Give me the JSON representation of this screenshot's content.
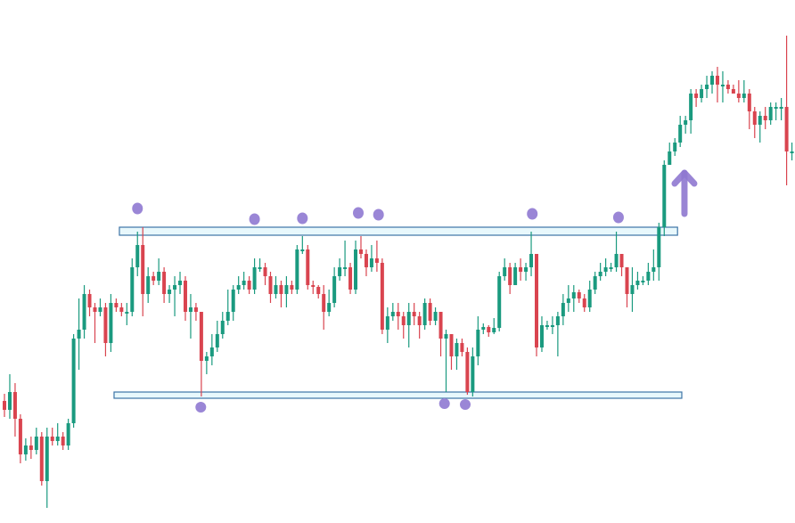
{
  "chart_data": {
    "type": "candlestick",
    "title": "",
    "xlabel": "",
    "ylabel": "",
    "axes_visible": false,
    "grid": false,
    "ylim": [
      0,
      58.7
    ],
    "colors": {
      "up": "#1a9a7f",
      "down": "#d9444f",
      "zone_fill": "#e8f8fc",
      "zone_stroke": "#3d74a6",
      "marker": "#9a86d6",
      "arrow": "#8f78d0"
    },
    "open": [
      15,
      14,
      16,
      13,
      9,
      10,
      9.5,
      11,
      6,
      11,
      10.5,
      11,
      10,
      12.5,
      22,
      23,
      27,
      25.5,
      25,
      25.5,
      21.5,
      26,
      25.5,
      25,
      25,
      30,
      32.5,
      27,
      29,
      28.5,
      29.5,
      27,
      27.5,
      28,
      28.5,
      25,
      25.5,
      25,
      19.5,
      20,
      21,
      22.5,
      24,
      25,
      27.5,
      28,
      28.5,
      27.5,
      30,
      30,
      29,
      27,
      28,
      27,
      28,
      27.5,
      32,
      32,
      28,
      27.8,
      27,
      25,
      26,
      29,
      30,
      30,
      27.5,
      32,
      31.5,
      30,
      31,
      30.5,
      23,
      24.5,
      25,
      24.5,
      23.5,
      25,
      24.5,
      23.5,
      26,
      24,
      25,
      22,
      22.5,
      20,
      21.5,
      20.5,
      16,
      20,
      23,
      23.3,
      22.7,
      23.2,
      29,
      30,
      28,
      30,
      29.5,
      30,
      31.5,
      21,
      23.5,
      23.5,
      23.5,
      24.5,
      26,
      26.5,
      27.2,
      26.5,
      25.5,
      27.5,
      29,
      29.5,
      30,
      30,
      31.5,
      30,
      27,
      28,
      28.5,
      28.5,
      29.5,
      30,
      34.5,
      41.5,
      43,
      44,
      46,
      46.5,
      49.5,
      49,
      50,
      50.5,
      51.5,
      50.5,
      50.5,
      50,
      49.5,
      49,
      49.5,
      47.5,
      46,
      47,
      46.5,
      48,
      48,
      48,
      43
    ],
    "high": [
      15.8,
      18,
      17,
      13.5,
      10.8,
      11,
      12,
      11.5,
      12,
      12,
      12.5,
      11.5,
      13,
      22.5,
      26.5,
      28,
      27.5,
      26,
      26.5,
      26,
      27,
      26.5,
      26,
      26,
      31,
      34,
      34.5,
      30,
      29.5,
      31,
      30,
      28,
      29,
      29.5,
      29,
      27,
      26,
      25,
      20.5,
      22.5,
      24,
      25,
      27.5,
      28,
      29,
      29.5,
      29,
      31,
      31,
      30.5,
      29.5,
      29,
      28.5,
      29,
      28.5,
      32.5,
      33.5,
      32.5,
      28.5,
      28,
      28,
      27.5,
      30,
      31,
      33,
      30.5,
      33,
      33.5,
      32,
      32.5,
      33,
      31,
      25.5,
      26,
      26,
      25,
      26,
      26,
      25,
      26.5,
      26.5,
      25.5,
      25,
      23,
      22.5,
      22,
      22,
      21,
      21,
      24.5,
      23.7,
      23.5,
      24.3,
      29.5,
      31,
      30.5,
      30.5,
      31,
      30.5,
      34,
      31.5,
      24.5,
      24,
      24.5,
      25,
      27,
      28,
      28,
      27.5,
      27,
      28.5,
      29.5,
      30.5,
      31,
      30.5,
      34,
      31.5,
      30,
      30,
      29.5,
      29,
      30.5,
      32,
      35,
      42,
      44,
      44.5,
      47,
      47,
      50,
      50,
      50.5,
      51.5,
      52,
      52.5,
      52,
      51,
      50.5,
      51,
      51,
      50,
      48,
      47.5,
      48,
      48.5,
      48.5,
      49,
      56,
      44
    ],
    "low": [
      13.2,
      13,
      11,
      8,
      8.3,
      8.5,
      9,
      5.5,
      3,
      10,
      10,
      9.5,
      9.5,
      12,
      18.5,
      22,
      24.5,
      21.5,
      24.5,
      20,
      20.5,
      25,
      24.5,
      23.5,
      24.5,
      29,
      24.5,
      26,
      28,
      28,
      26,
      26,
      24.5,
      27,
      24,
      22,
      24,
      15.5,
      18,
      19,
      20.5,
      22,
      23.5,
      24,
      27,
      27.5,
      27,
      27,
      29.5,
      28,
      26,
      26.5,
      25.5,
      25.5,
      27,
      27,
      31.5,
      27.5,
      27,
      26.5,
      23,
      24.5,
      25.5,
      28.5,
      29,
      27,
      27,
      31,
      29,
      29.5,
      29.5,
      22.5,
      21.5,
      24,
      23,
      22,
      21,
      23.5,
      22,
      23,
      23.5,
      23.5,
      20,
      16,
      18.5,
      18.5,
      20,
      15.7,
      15.5,
      19,
      22.5,
      22.2,
      22.5,
      22.8,
      28.5,
      27,
      28.5,
      28.5,
      28.5,
      29,
      20,
      20.5,
      23,
      22.5,
      20,
      23.5,
      25,
      25,
      26,
      25,
      25,
      27,
      28.5,
      29,
      29.5,
      29.5,
      29,
      25.5,
      25,
      27.5,
      28,
      28,
      28.5,
      28.5,
      33.5,
      41.5,
      42.5,
      43.5,
      45,
      45,
      48,
      48.5,
      49,
      49.5,
      48.5,
      48.5,
      49.5,
      49.5,
      48.5,
      48.5,
      45.5,
      44.5,
      44,
      45.5,
      46,
      46.5,
      46.5,
      39.2,
      42
    ],
    "close": [
      14,
      16,
      13,
      9,
      10,
      9.5,
      11,
      6,
      11,
      10.5,
      11,
      10,
      12.5,
      22,
      23,
      27,
      25.5,
      25,
      25.5,
      21.5,
      26,
      25.5,
      25,
      25,
      30,
      32.5,
      27,
      29,
      28.5,
      29.5,
      27,
      27.5,
      28,
      28.5,
      25,
      25.5,
      25,
      19.5,
      20,
      21,
      22.5,
      24,
      25,
      27.5,
      28,
      28.5,
      27.5,
      30,
      30,
      29,
      27,
      28,
      27,
      28,
      27.5,
      32,
      32,
      28,
      27.8,
      27,
      25,
      26,
      29,
      30,
      30,
      27.5,
      32,
      31.5,
      30,
      31,
      30.5,
      23,
      24.5,
      25,
      24.5,
      23.5,
      25,
      24.5,
      23.5,
      26,
      24,
      25,
      22,
      22.5,
      20,
      21.5,
      20.5,
      16,
      20,
      23,
      23.3,
      22.7,
      23.2,
      29,
      30,
      28,
      30,
      29.5,
      30,
      31.5,
      21,
      23.5,
      23.5,
      23.5,
      24.5,
      26,
      26.5,
      27.2,
      26.5,
      25.5,
      27.5,
      29,
      29.5,
      30,
      30,
      31.5,
      30,
      27,
      28,
      28.5,
      28.5,
      29.5,
      30,
      34.5,
      41.5,
      43,
      44,
      46,
      46.5,
      49.5,
      49,
      50,
      50.5,
      51.5,
      50.5,
      50.5,
      50,
      49.5,
      49,
      49.5,
      47.5,
      46,
      47,
      46.5,
      48,
      48,
      48,
      43,
      43
    ],
    "annotations": {
      "resistance_zone": {
        "from_candle": 21.6,
        "to_candle": 126.5,
        "price_low": 33.6,
        "price_high": 34.5
      },
      "support_zone": {
        "from_candle": 20.6,
        "to_candle": 127.3,
        "price_low": 15.3,
        "price_high": 16.0
      },
      "resistance_touches": [
        {
          "candle": 25,
          "price": 36.6
        },
        {
          "candle": 47,
          "price": 35.4
        },
        {
          "candle": 56,
          "price": 35.5
        },
        {
          "candle": 66.5,
          "price": 36.1
        },
        {
          "candle": 70.3,
          "price": 35.9
        },
        {
          "candle": 99.2,
          "price": 36.0
        },
        {
          "candle": 115.4,
          "price": 35.6
        }
      ],
      "support_touches": [
        {
          "candle": 36.9,
          "price": 14.3
        },
        {
          "candle": 82.7,
          "price": 14.7
        },
        {
          "candle": 86.6,
          "price": 14.6
        }
      ],
      "breakout_arrow": {
        "candle": 127.8,
        "price_from": 36.0,
        "price_to": 40.0,
        "direction": "up"
      }
    }
  }
}
